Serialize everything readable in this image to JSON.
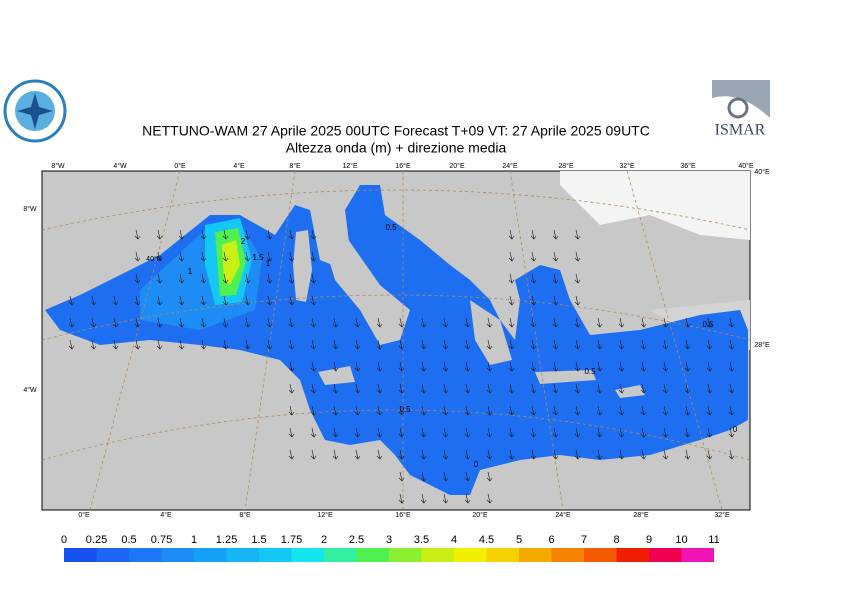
{
  "header": {
    "title": "NETTUNO-WAM  27   Aprile  2025 00UTC Forecast T+09 VT: 27   Aprile  2025 09UTC",
    "subtitle": "Altezza onda (m) + direzione media",
    "logo_text": "ISMAR"
  },
  "map": {
    "top_labels": [
      "8°W",
      "4°W",
      "0°E",
      "4°E",
      "8°E",
      "12°E",
      "16°E",
      "20°E",
      "24°E",
      "28°E",
      "32°E",
      "36°E",
      "40°E"
    ],
    "bottom_labels": [
      "0°E",
      "4°E",
      "8°E",
      "12°E",
      "16°E",
      "20°E",
      "24°E",
      "28°E",
      "32°E"
    ],
    "left_labels": [
      "8°W",
      "4°W"
    ],
    "right_labels": [
      "40°E",
      "28°E"
    ],
    "inner_labels": [
      "40°N"
    ],
    "contour_labels": [
      "2",
      "1.5",
      "1",
      "1",
      "0.5",
      "0.5",
      "0.5",
      "0.5",
      "0",
      "0"
    ]
  },
  "legend": {
    "ticks": [
      0,
      0.25,
      0.5,
      0.75,
      1,
      1.25,
      1.5,
      1.75,
      2,
      2.5,
      3,
      3.5,
      4,
      4.5,
      5,
      6,
      7,
      8,
      9,
      10,
      11
    ],
    "colors": [
      "#1450f0",
      "#1e64f5",
      "#1e78f5",
      "#1e8cf5",
      "#14a0f5",
      "#14b4f5",
      "#14c8f5",
      "#14e6f0",
      "#32f0a0",
      "#50f050",
      "#8cf032",
      "#c8f014",
      "#f0f000",
      "#f5d200",
      "#f5aa00",
      "#f58200",
      "#f55a00",
      "#f01e00",
      "#f00050",
      "#f014b4"
    ]
  }
}
